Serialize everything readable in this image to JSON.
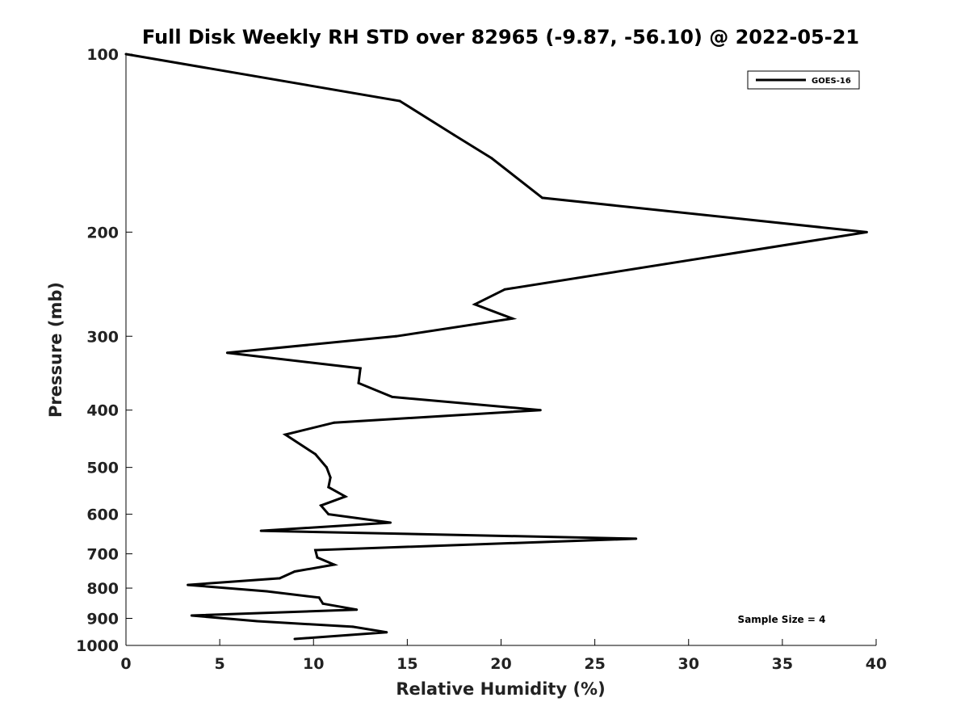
{
  "chart_data": {
    "type": "line",
    "title": "Full Disk Weekly RH STD over 82965 (-9.87, -56.10) @ 2022-05-21",
    "xlabel": "Relative Humidity (%)",
    "ylabel": "Pressure (mb)",
    "xlim": [
      0,
      40
    ],
    "ylim": [
      100,
      1000
    ],
    "y_scale": "log",
    "y_reversed": true,
    "grid": false,
    "legend_placement": "top-right",
    "x_ticks": [
      "0",
      "5",
      "10",
      "15",
      "20",
      "25",
      "30",
      "35",
      "40"
    ],
    "y_ticks": [
      "100",
      "200",
      "300",
      "400",
      "500",
      "600",
      "700",
      "800",
      "900",
      "1000"
    ],
    "annotation": "Sample Size = 4",
    "series": [
      {
        "name": "GOES-16",
        "color": "#000000",
        "x": [
          0.0,
          14.6,
          17.5,
          19.5,
          22.2,
          39.5,
          20.2,
          18.6,
          20.6,
          14.4,
          5.4,
          12.5,
          12.4,
          14.2,
          22.1,
          11.1,
          8.5,
          10.1,
          10.7,
          10.9,
          10.8,
          11.7,
          10.4,
          10.8,
          14.1,
          7.2,
          27.2,
          10.1,
          10.2,
          11.1,
          9.0,
          8.2,
          3.3,
          7.5,
          10.3,
          10.5,
          12.3,
          3.5,
          7.0,
          12.1,
          13.9,
          9.0
        ],
        "y": [
          100,
          120,
          137,
          150,
          175,
          200,
          250,
          265,
          280,
          300,
          320,
          340,
          360,
          380,
          400,
          420,
          440,
          475,
          500,
          520,
          540,
          560,
          580,
          600,
          620,
          640,
          660,
          690,
          710,
          730,
          750,
          770,
          790,
          810,
          830,
          850,
          870,
          890,
          910,
          930,
          950,
          975
        ]
      }
    ]
  }
}
